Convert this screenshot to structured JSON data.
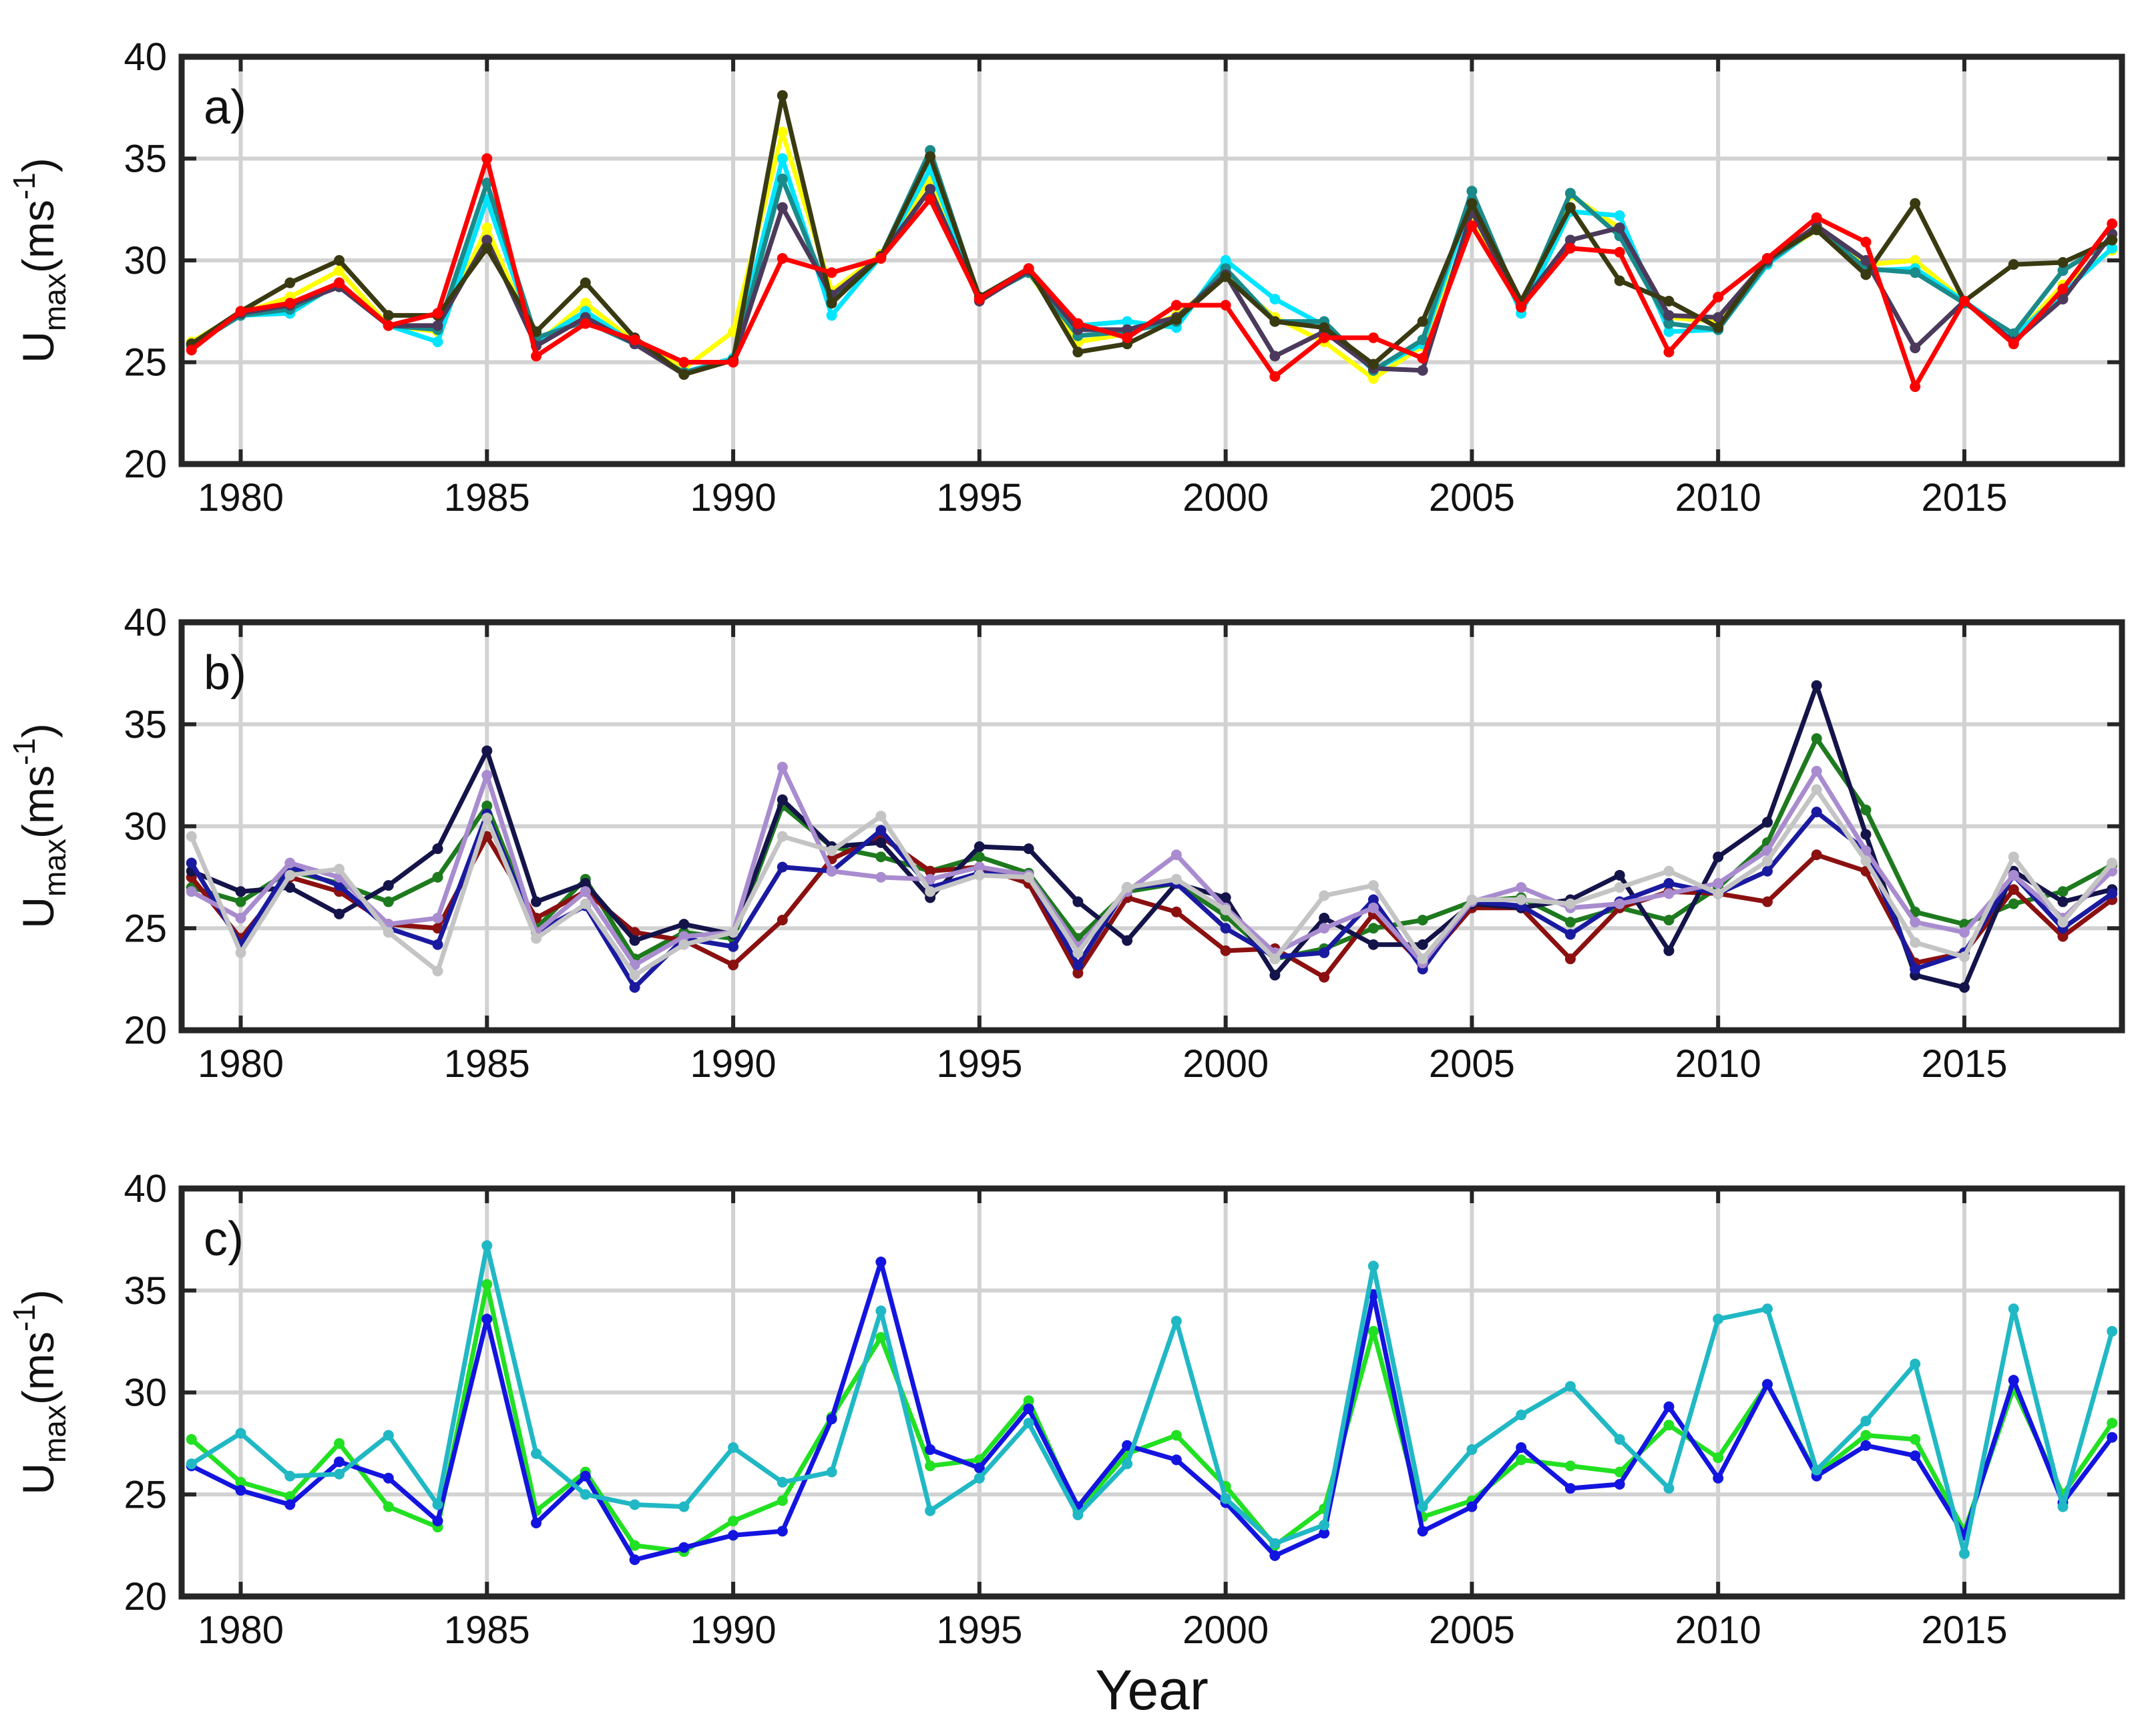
{
  "figure": {
    "xlabel": "Year"
  },
  "chart_data": [
    {
      "type": "line",
      "panel_label": "a)",
      "ylabel_main": "U",
      "ylabel_sub": "max",
      "ylabel_unit": "(ms",
      "ylabel_exp": "-1",
      "ylabel_close": ")",
      "xlim": [
        1978.8,
        2018.2
      ],
      "ylim": [
        20,
        40
      ],
      "xticks": [
        1980,
        1985,
        1990,
        1995,
        2000,
        2005,
        2010,
        2015
      ],
      "xtick_labels": [
        "1980",
        "1985",
        "1990",
        "1995",
        "2000",
        "2005",
        "2010",
        "2015"
      ],
      "yticks": [
        20,
        25,
        30,
        35,
        40
      ],
      "ytick_labels": [
        "20",
        "25",
        "30",
        "35",
        "40"
      ],
      "grid": true,
      "x": [
        1979,
        1980,
        1981,
        1982,
        1983,
        1984,
        1985,
        1986,
        1987,
        1988,
        1989,
        1990,
        1991,
        1992,
        1993,
        1994,
        1995,
        1996,
        1997,
        1998,
        1999,
        2000,
        2001,
        2002,
        2003,
        2004,
        2005,
        2006,
        2007,
        2008,
        2009,
        2010,
        2011,
        2012,
        2013,
        2014,
        2015,
        2016,
        2017,
        2018
      ],
      "series": [
        {
          "color": "#ffff00",
          "values": [
            26.0,
            27.4,
            28.2,
            29.5,
            26.8,
            26.5,
            31.6,
            25.9,
            27.9,
            26.0,
            24.7,
            26.5,
            36.3,
            28.5,
            30.3,
            34.0,
            28.2,
            29.4,
            26.0,
            26.4,
            27.3,
            29.2,
            27.2,
            26.0,
            24.2,
            25.8,
            31.8,
            27.8,
            33.2,
            31.6,
            27.2,
            27.0,
            29.9,
            31.5,
            29.8,
            30.0,
            28.0,
            26.2,
            28.8,
            30.5
          ]
        },
        {
          "color": "#00e5ff",
          "values": [
            25.9,
            27.3,
            27.4,
            28.9,
            26.8,
            26.0,
            33.0,
            26.0,
            27.5,
            25.9,
            24.5,
            25.2,
            35.0,
            27.3,
            30.2,
            34.5,
            28.1,
            29.4,
            26.8,
            27.0,
            26.7,
            30.0,
            28.1,
            26.8,
            24.6,
            25.9,
            33.0,
            27.4,
            32.4,
            32.2,
            26.5,
            26.6,
            29.8,
            31.6,
            29.5,
            29.6,
            28.0,
            26.3,
            28.4,
            30.6
          ]
        },
        {
          "color": "#1a8a8a",
          "values": [
            25.8,
            27.3,
            27.6,
            28.8,
            26.8,
            26.6,
            33.8,
            26.2,
            27.0,
            25.9,
            24.5,
            25.1,
            34.0,
            28.0,
            30.2,
            35.4,
            28.1,
            29.4,
            26.3,
            26.5,
            27.0,
            29.6,
            27.0,
            27.0,
            24.6,
            26.1,
            33.4,
            27.7,
            33.3,
            31.2,
            26.9,
            26.6,
            29.9,
            31.6,
            29.6,
            29.4,
            27.9,
            26.4,
            29.5,
            31.0
          ]
        },
        {
          "color": "#4b3a5c",
          "values": [
            25.9,
            27.4,
            27.8,
            28.7,
            26.8,
            26.8,
            31.0,
            25.8,
            27.2,
            25.9,
            24.4,
            25.1,
            32.6,
            28.3,
            30.2,
            33.5,
            28.0,
            29.5,
            26.6,
            26.6,
            27.2,
            29.3,
            25.3,
            26.5,
            24.7,
            24.6,
            32.4,
            27.8,
            31.0,
            31.6,
            27.3,
            27.2,
            30.0,
            31.7,
            30.0,
            25.7,
            28.0,
            26.0,
            28.1,
            31.3
          ]
        },
        {
          "color": "#3a3a12",
          "values": [
            25.9,
            27.5,
            28.9,
            30.0,
            27.3,
            27.3,
            30.6,
            26.5,
            28.9,
            26.2,
            24.4,
            25.1,
            38.1,
            27.9,
            30.2,
            35.1,
            28.2,
            29.6,
            25.5,
            25.9,
            27.1,
            29.2,
            27.0,
            26.7,
            24.9,
            27.0,
            32.8,
            28.0,
            32.6,
            29.0,
            28.0,
            26.7,
            30.1,
            31.5,
            29.3,
            32.8,
            28.0,
            29.8,
            29.9,
            31.0
          ]
        },
        {
          "color": "#ff0000",
          "values": [
            25.6,
            27.5,
            27.9,
            28.9,
            26.8,
            27.4,
            35.0,
            25.3,
            26.9,
            26.1,
            25.0,
            25.0,
            30.1,
            29.4,
            30.1,
            33.0,
            28.1,
            29.6,
            26.9,
            26.2,
            27.8,
            27.8,
            24.3,
            26.2,
            26.2,
            25.2,
            31.7,
            27.7,
            30.6,
            30.4,
            25.5,
            28.2,
            30.1,
            32.1,
            30.9,
            23.8,
            28.0,
            25.9,
            28.6,
            31.8
          ]
        }
      ]
    },
    {
      "type": "line",
      "panel_label": "b)",
      "ylabel_main": "U",
      "ylabel_sub": "max",
      "ylabel_unit": "(ms",
      "ylabel_exp": "-1",
      "ylabel_close": ")",
      "xlim": [
        1978.8,
        2018.2
      ],
      "ylim": [
        20,
        40
      ],
      "xticks": [
        1980,
        1985,
        1990,
        1995,
        2000,
        2005,
        2010,
        2015
      ],
      "xtick_labels": [
        "1980",
        "1985",
        "1990",
        "1995",
        "2000",
        "2005",
        "2010",
        "2015"
      ],
      "yticks": [
        20,
        25,
        30,
        35,
        40
      ],
      "ytick_labels": [
        "20",
        "25",
        "30",
        "35",
        "40"
      ],
      "grid": true,
      "x": [
        1979,
        1980,
        1981,
        1982,
        1983,
        1984,
        1985,
        1986,
        1987,
        1988,
        1989,
        1990,
        1991,
        1992,
        1993,
        1994,
        1995,
        1996,
        1997,
        1998,
        1999,
        2000,
        2001,
        2002,
        2003,
        2004,
        2005,
        2006,
        2007,
        2008,
        2009,
        2010,
        2011,
        2012,
        2013,
        2014,
        2015,
        2016,
        2017,
        2018
      ],
      "series": [
        {
          "color": "#1e7a1e",
          "values": [
            27.0,
            26.3,
            27.8,
            27.2,
            26.3,
            27.5,
            31.0,
            25.0,
            27.4,
            23.5,
            24.8,
            24.5,
            31.0,
            29.0,
            28.5,
            27.8,
            28.5,
            27.7,
            24.5,
            26.8,
            27.2,
            25.6,
            23.5,
            24.0,
            25.0,
            25.4,
            26.3,
            26.5,
            25.3,
            26.0,
            25.4,
            27.0,
            29.2,
            34.3,
            30.8,
            25.8,
            25.2,
            26.2,
            26.8,
            28.1
          ]
        },
        {
          "color": "#8b1010",
          "values": [
            27.5,
            24.5,
            27.5,
            26.8,
            25.2,
            25.0,
            29.5,
            25.5,
            26.8,
            24.8,
            24.4,
            23.2,
            25.4,
            28.4,
            29.5,
            27.8,
            28.0,
            27.2,
            22.8,
            26.5,
            25.8,
            23.9,
            24.0,
            22.6,
            25.7,
            23.2,
            26.0,
            26.0,
            23.5,
            26.0,
            26.8,
            26.7,
            26.3,
            28.6,
            27.8,
            23.3,
            23.8,
            26.9,
            24.6,
            26.4
          ]
        },
        {
          "color": "#14144a",
          "values": [
            27.8,
            26.8,
            27.0,
            25.7,
            27.1,
            28.9,
            33.7,
            26.3,
            27.2,
            24.4,
            25.2,
            24.7,
            31.3,
            29.0,
            29.2,
            26.5,
            29.0,
            28.9,
            26.3,
            24.4,
            27.2,
            26.5,
            22.7,
            25.5,
            24.2,
            24.2,
            26.2,
            26.0,
            26.4,
            27.6,
            23.9,
            28.5,
            30.2,
            36.9,
            29.6,
            22.7,
            22.1,
            27.8,
            26.3,
            26.9
          ]
        },
        {
          "color": "#1a1aa0",
          "values": [
            28.2,
            24.2,
            28.0,
            27.1,
            25.0,
            24.2,
            30.6,
            24.8,
            26.1,
            22.1,
            24.5,
            24.1,
            28.0,
            27.8,
            29.8,
            27.0,
            27.7,
            27.6,
            23.2,
            27.0,
            27.2,
            25.0,
            23.6,
            23.8,
            26.4,
            23.0,
            26.3,
            26.1,
            24.7,
            26.3,
            27.2,
            26.7,
            27.8,
            30.7,
            28.8,
            23.0,
            23.8,
            27.6,
            25.0,
            26.7
          ]
        },
        {
          "color": "#a98ccf",
          "values": [
            26.8,
            25.5,
            28.2,
            27.5,
            25.2,
            25.5,
            32.5,
            24.8,
            26.8,
            23.2,
            24.6,
            24.8,
            32.9,
            27.8,
            27.5,
            27.4,
            28.0,
            27.6,
            24.1,
            26.8,
            28.6,
            26.0,
            23.8,
            25.0,
            26.0,
            23.3,
            26.3,
            27.0,
            26.0,
            26.2,
            26.7,
            27.2,
            28.8,
            32.7,
            28.8,
            25.3,
            24.8,
            27.6,
            25.5,
            27.8
          ]
        },
        {
          "color": "#c4c4c4",
          "values": [
            29.5,
            23.8,
            27.6,
            27.9,
            24.8,
            22.9,
            30.4,
            24.5,
            26.2,
            22.7,
            24.2,
            24.8,
            29.5,
            28.8,
            30.5,
            26.8,
            27.6,
            27.5,
            23.8,
            27.0,
            27.4,
            25.9,
            23.5,
            26.6,
            27.1,
            23.5,
            26.4,
            26.4,
            26.2,
            27.0,
            27.8,
            26.7,
            28.3,
            31.8,
            28.3,
            24.3,
            23.6,
            28.5,
            25.3,
            28.2
          ]
        }
      ]
    },
    {
      "type": "line",
      "panel_label": "c)",
      "ylabel_main": "U",
      "ylabel_sub": "max",
      "ylabel_unit": "(ms",
      "ylabel_exp": "-1",
      "ylabel_close": ")",
      "xlim": [
        1978.8,
        2018.2
      ],
      "ylim": [
        20,
        40
      ],
      "xticks": [
        1980,
        1985,
        1990,
        1995,
        2000,
        2005,
        2010,
        2015
      ],
      "xtick_labels": [
        "1980",
        "1985",
        "1990",
        "1995",
        "2000",
        "2005",
        "2010",
        "2015"
      ],
      "yticks": [
        20,
        25,
        30,
        35,
        40
      ],
      "ytick_labels": [
        "20",
        "25",
        "30",
        "35",
        "40"
      ],
      "grid": true,
      "x": [
        1979,
        1980,
        1981,
        1982,
        1983,
        1984,
        1985,
        1986,
        1987,
        1988,
        1989,
        1990,
        1991,
        1992,
        1993,
        1994,
        1995,
        1996,
        1997,
        1998,
        1999,
        2000,
        2001,
        2002,
        2003,
        2004,
        2005,
        2006,
        2007,
        2008,
        2009,
        2010,
        2011,
        2012,
        2013,
        2014,
        2015,
        2016,
        2017,
        2018
      ],
      "series": [
        {
          "color": "#22e022",
          "values": [
            27.7,
            25.6,
            24.9,
            27.5,
            24.4,
            23.4,
            35.3,
            24.2,
            26.1,
            22.5,
            22.2,
            23.7,
            24.7,
            28.8,
            32.7,
            26.4,
            26.7,
            29.6,
            24.2,
            27.0,
            27.9,
            25.4,
            22.5,
            24.3,
            33.0,
            23.9,
            24.7,
            26.7,
            26.4,
            26.1,
            28.4,
            26.8,
            30.4,
            26.0,
            27.9,
            27.7,
            23.2,
            30.2,
            25.0,
            28.5
          ]
        },
        {
          "color": "#1414e0",
          "values": [
            26.4,
            25.2,
            24.5,
            26.6,
            25.8,
            23.7,
            33.6,
            23.6,
            25.9,
            21.8,
            22.4,
            23.0,
            23.2,
            28.7,
            36.4,
            27.2,
            26.3,
            29.2,
            24.4,
            27.4,
            26.7,
            24.6,
            22.0,
            23.1,
            34.8,
            23.2,
            24.4,
            27.3,
            25.3,
            25.5,
            29.3,
            25.8,
            30.4,
            25.9,
            27.4,
            26.9,
            23.0,
            30.6,
            24.6,
            27.8
          ]
        },
        {
          "color": "#20b8c4",
          "values": [
            26.5,
            28.0,
            25.9,
            26.0,
            27.9,
            24.5,
            37.2,
            27.0,
            25.0,
            24.5,
            24.4,
            27.3,
            25.6,
            26.1,
            34.0,
            24.2,
            25.8,
            28.5,
            24.0,
            26.5,
            33.5,
            24.8,
            22.6,
            23.5,
            36.2,
            24.4,
            27.2,
            28.9,
            30.3,
            27.7,
            25.3,
            33.6,
            34.1,
            26.2,
            28.6,
            31.4,
            22.1,
            34.1,
            24.4,
            33.0
          ]
        }
      ]
    }
  ]
}
